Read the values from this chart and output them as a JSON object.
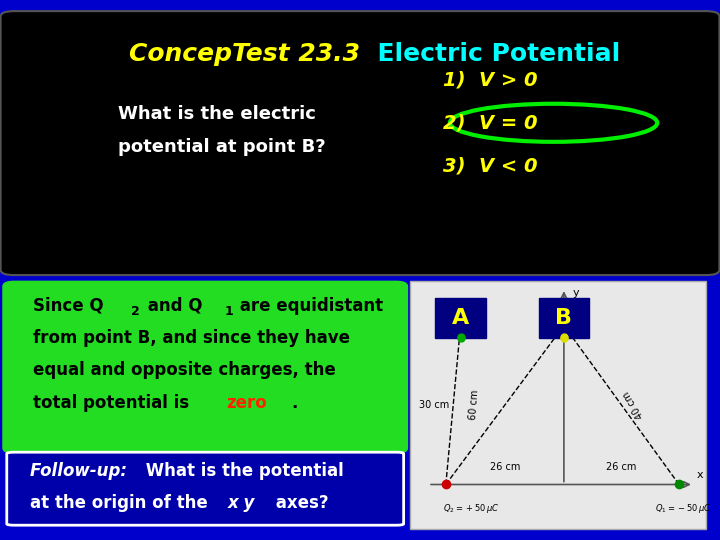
{
  "title_italic": "ConcepTest 23.3",
  "title_normal": "  Electric Potential",
  "title_italic_color": "#ffff00",
  "title_normal_color": "#00ffff",
  "title_fontsize": 18,
  "bg_color": "#0000cc",
  "top_bg_color": "#000000",
  "question_text_line1": "What is the electric",
  "question_text_line2": "potential at point B?",
  "question_color": "#ffffff",
  "question_fontsize": 13,
  "options": [
    "1)  V > 0",
    "2)  V = 0",
    "3)  V < 0"
  ],
  "options_color": "#ffff00",
  "options_fontsize": 14,
  "circle_color": "#00ee00",
  "answer_box_color": "#22dd22",
  "answer_text_color": "#000000",
  "answer_zero_color": "#ff2200",
  "answer_fontsize": 12,
  "followup_box_color": "#0000aa",
  "followup_border_color": "#ffffff",
  "followup_text_color": "#ffffff",
  "followup_fontsize": 12,
  "diag_bg_color": "#e8e8e8",
  "diag_border_color": "#aaaaaa"
}
